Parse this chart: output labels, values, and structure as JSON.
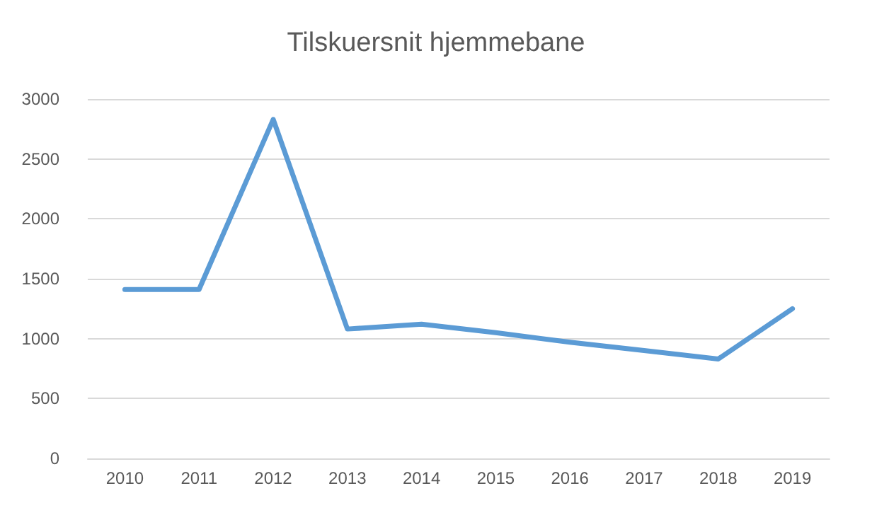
{
  "chart_data": {
    "type": "line",
    "title": "Tilskuersnit hjemmebane",
    "categories": [
      "2010",
      "2011",
      "2012",
      "2013",
      "2014",
      "2015",
      "2016",
      "2017",
      "2018",
      "2019"
    ],
    "series": [
      {
        "color": "#5b9bd5",
        "values": [
          1410,
          1410,
          2830,
          1080,
          1120,
          1050,
          970,
          900,
          830,
          1250
        ]
      }
    ],
    "ylim": [
      0,
      3000
    ],
    "yticks": [
      0,
      500,
      1000,
      1500,
      2000,
      2500,
      3000
    ],
    "grid": "y",
    "marker": "none",
    "line_style": "solid"
  }
}
